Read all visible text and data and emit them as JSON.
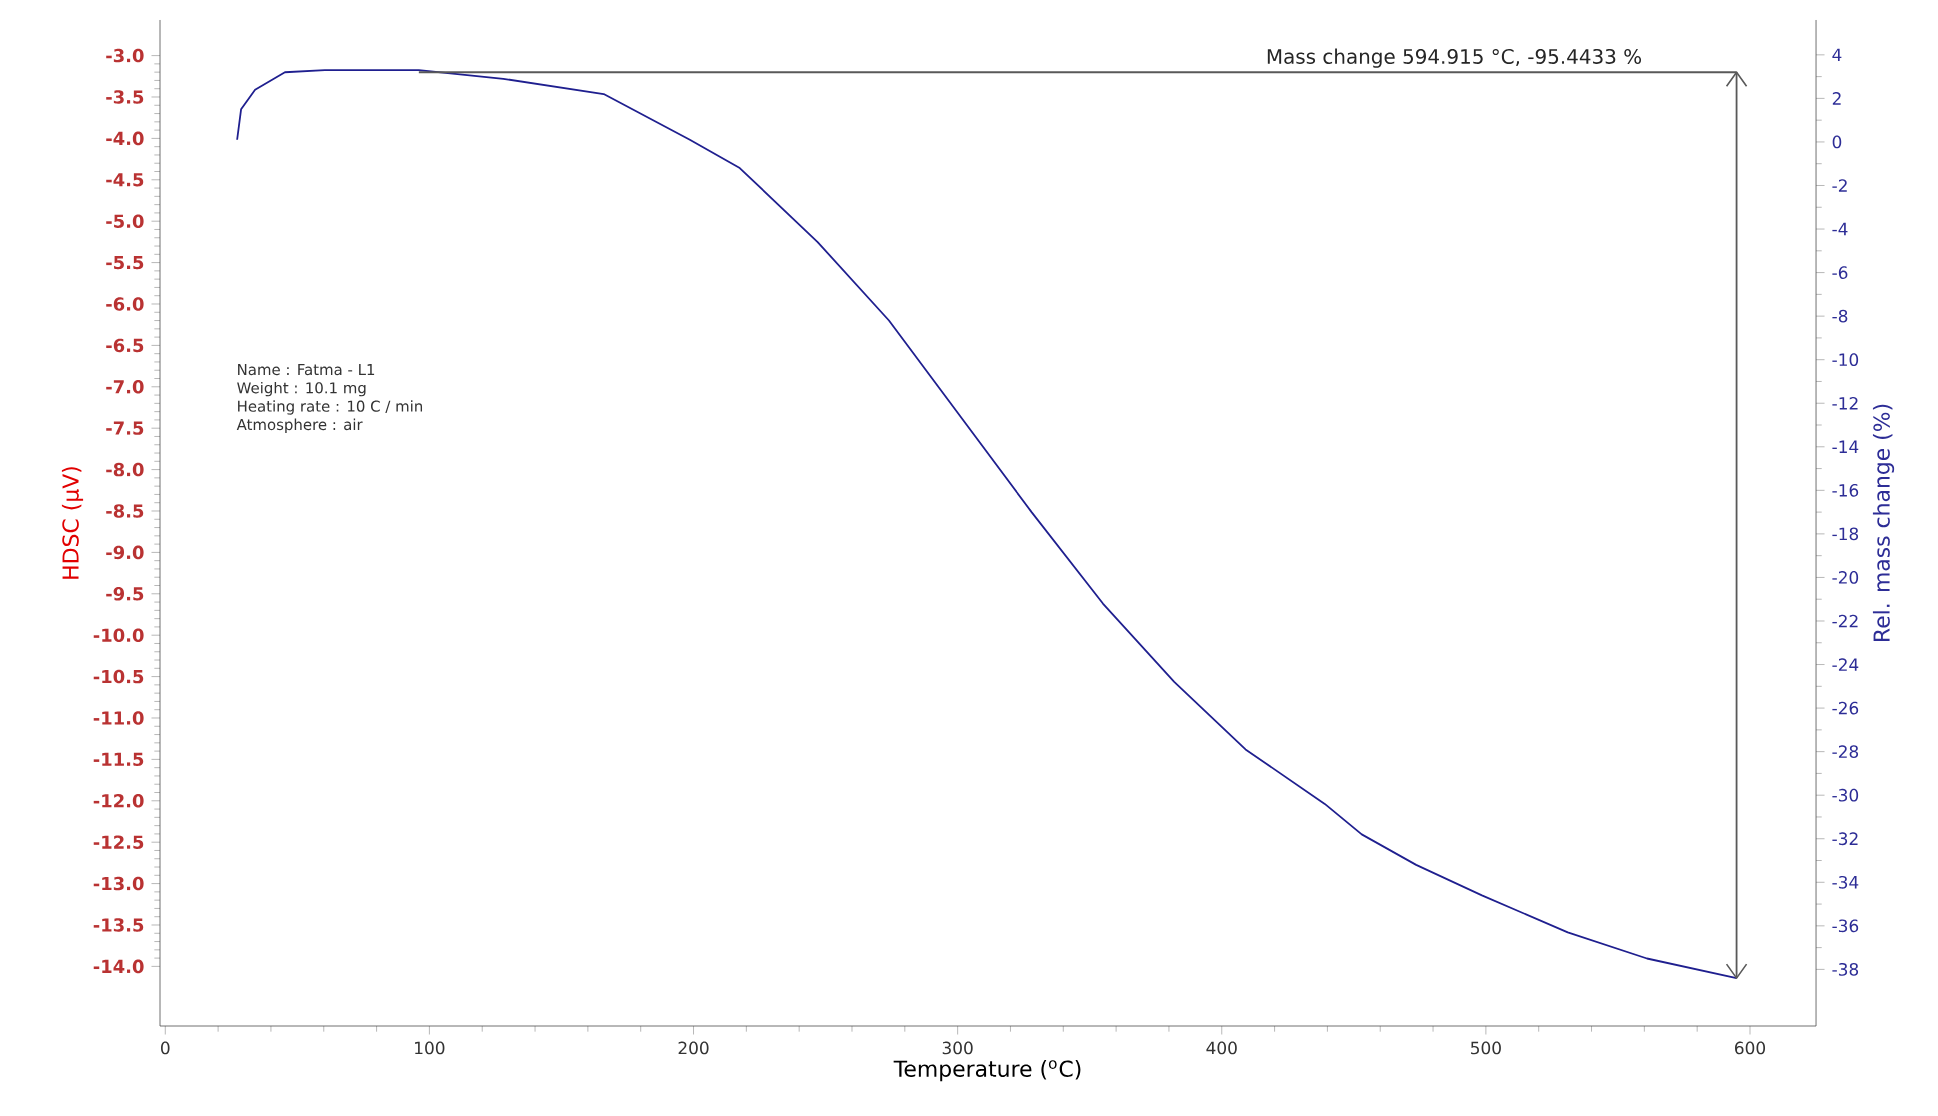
{
  "chart_data": {
    "type": "line",
    "xlabel": "Temperature ($^{o}$C)",
    "ylabel": "HDSC (µV)",
    "y2label": "Rel. mass change (%)",
    "xlim": [
      -2,
      625
    ],
    "xticks": [
      0,
      100,
      200,
      300,
      400,
      500,
      600
    ],
    "ylim": [
      -14.72,
      -2.57
    ],
    "yticks": [
      {
        "value": -3,
        "label": "-3.0"
      },
      {
        "value": -3.5,
        "label": "-3.5"
      },
      {
        "value": -4,
        "label": "-4.0"
      },
      {
        "value": -4.5,
        "label": "-4.5"
      },
      {
        "value": -5,
        "label": "-5.0"
      },
      {
        "value": -5.5,
        "label": "-5.5"
      },
      {
        "value": -6,
        "label": "-6.0"
      },
      {
        "value": -6.5,
        "label": "-6.5"
      },
      {
        "value": -7,
        "label": "-7.0"
      },
      {
        "value": -7.5,
        "label": "-7.5"
      },
      {
        "value": -8,
        "label": "-8.0"
      },
      {
        "value": -8.5,
        "label": "-8.5"
      },
      {
        "value": -9,
        "label": "-9.0"
      },
      {
        "value": -9.5,
        "label": "-9.5"
      },
      {
        "value": -10,
        "label": "-10.0"
      },
      {
        "value": -10.5,
        "label": "-10.5"
      },
      {
        "value": -11,
        "label": "-11.0"
      },
      {
        "value": -11.5,
        "label": "-11.5"
      },
      {
        "value": -12,
        "label": "-12.0"
      },
      {
        "value": -12.5,
        "label": "-12.5"
      },
      {
        "value": -13,
        "label": "-13.0"
      },
      {
        "value": -13.5,
        "label": "-13.5"
      },
      {
        "value": -14,
        "label": "-14.0"
      }
    ],
    "y2lim": [
      -40.6,
      5.6
    ],
    "y2ticks": [
      4,
      2,
      0,
      -2,
      -4,
      -6,
      -8,
      -10,
      -12,
      -14,
      -16,
      -18,
      -20,
      -22,
      -24,
      -26,
      -28,
      -30,
      -32,
      -34,
      -36,
      -38
    ],
    "series": [
      {
        "color": "#1f1f8f",
        "axis": "y2",
        "x": [
          27.2,
          28.7,
          34,
          45.3,
          60.4,
          83,
          96,
          128,
          166,
          198.6,
          217.5,
          247,
          274,
          301,
          328,
          355,
          382,
          409,
          439,
          453,
          473.6,
          498.5,
          531,
          561,
          594.9
        ],
        "values": [
          0.1,
          1.5,
          2.4,
          3.2,
          3.3,
          3.3,
          3.3,
          2.9,
          2.2,
          0.1,
          -1.2,
          -4.6,
          -8.2,
          -12.6,
          -17.0,
          -21.2,
          -24.8,
          -27.9,
          -30.4,
          -31.8,
          -33.2,
          -34.6,
          -36.3,
          -37.5,
          -38.4
        ]
      },
      {
        "color": "#595959",
        "axis": "y2",
        "x": [
          96,
          594.915
        ],
        "values": [
          3.2,
          3.2
        ]
      },
      {
        "color": "#595959",
        "axis": "y2",
        "x": [
          594.915,
          594.915
        ],
        "values": [
          3.2,
          -38.4
        ]
      }
    ],
    "annotations": [
      "Mass change 594.915 °C,  -95.4433 %",
      "Name : Fatma - L1",
      "Weight : 10.1 mg",
      "Heating rate : 10 C / min",
      "Atmosphere : air"
    ]
  }
}
